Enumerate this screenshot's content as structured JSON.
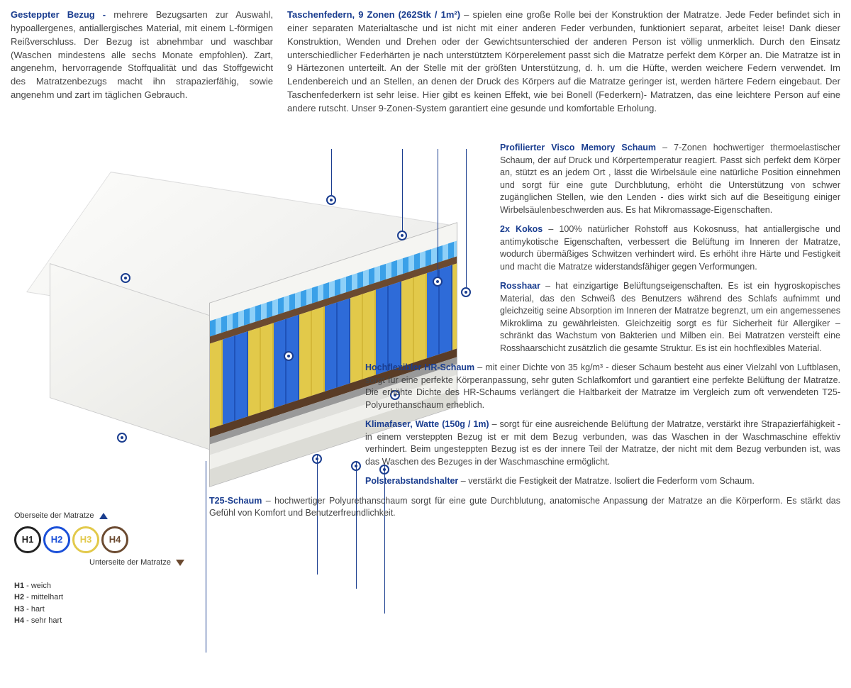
{
  "top": {
    "cover": {
      "title": "Gesteppter Bezug -",
      "text": "mehrere Bezugsarten zur Auswahl, hypoallergenes, antiallergisches Material, mit einem L-förmigen Reißverschluss. Der Bezug ist abnehmbar und waschbar (Waschen mindestens alle sechs Monate empfohlen). Zart, angenehm, hervorragende Stoffqualität und das Stoffgewicht des Matratzenbezugs macht ihn strapazierfähig, sowie angenehm und zart im täglichen Gebrauch."
    },
    "springs": {
      "title": "Taschenfedern, 9 Zonen (262Stk / 1m²)",
      "text": "– spielen eine große Rolle bei der Konstruktion der Matratze. Jede Feder befindet sich in einer separaten Materialtasche und ist nicht mit einer anderen Feder verbunden, funktioniert separat, arbeitet leise! Dank dieser Konstruktion, Wenden und Drehen oder der Gewichtsunterschied der anderen Person ist völlig unmerklich. Durch den Einsatz unterschiedlicher Federhärten je nach unterstütztem Körperelement passt sich die Matratze perfekt dem Körper an. Die Matratze ist in 9 Härtezonen unterteilt. An der Stelle mit der größten Unterstützung, d. h. um die Hüfte, werden weichere Federn verwendet. Im Lendenbereich und an Stellen, an denen der Druck des Körpers auf die Matratze geringer ist, werden härtere Federn eingebaut. Der Taschenfederkern ist sehr leise. Hier gibt es keinen Effekt, wie bei Bonell (Federkern)- Matratzen, das eine leichtere Person auf eine andere rutscht. Unser 9-Zonen-System garantiert eine gesunde und komfortable Erholung."
    }
  },
  "layers": [
    {
      "title": "Profilierter Visco Memory Schaum",
      "text": "– 7-Zonen hochwertiger thermoelastischer Schaum, der auf Druck und Körpertemperatur reagiert. Passt sich perfekt dem Körper an, stützt es an jedem Ort , lässt die Wirbelsäule eine natürliche Position einnehmen und sorgt für eine gute Durchblutung, erhöht die Unterstützung von schwer zugänglichen Stellen, wie den Lenden - dies wirkt sich auf die Beseitigung einiger Wirbelsäulenbeschwerden aus. Es hat Mikromassage-Eigenschaften.",
      "w": ""
    },
    {
      "title": "2x Kokos",
      "text": "– 100% natürlicher Rohstoff aus Kokosnuss, hat antiallergische und antimykotische Eigenschaften, verbessert die Belüftung im Inneren der Matratze, wodurch übermäßiges Schwitzen verhindert wird. Es erhöht ihre Härte und Festigkeit und macht die Matratze widerstandsfähiger gegen Verformungen.",
      "w": ""
    },
    {
      "title": "Rosshaar",
      "text": "– hat einzigartige Belüftungseigenschaften. Es ist ein hygroskopisches Material, das den Schweiß des Benutzers während des Schlafs aufnimmt und gleichzeitig seine Absorption im Inneren der Matratze begrenzt, um ein angemessenes Mikroklima zu gewährleisten. Gleichzeitig sorgt es für Sicherheit für Allergiker – schränkt das Wachstum von Bakterien und Milben ein. Bei Matratzen versteift eine Rosshaarschicht zusätzlich die gesamte Struktur. Es ist ein hochflexibles Material.",
      "w": ""
    },
    {
      "title": "Hochflexibler HR-Schaum",
      "text": "– mit einer Dichte von 35 kg/m³ - dieser Schaum besteht aus einer Vielzahl von Luftblasen, sorgt für eine perfekte Körperanpassung, sehr guten Schlafkomfort und garantiert eine perfekte Belüftung der Matratze. Die erhöhte Dichte des HR-Schaums verlängert die Haltbarkeit der Matratze im Vergleich zum oft verwendeten T25-Polyurethanschaum erheblich.",
      "w": "wider"
    },
    {
      "title": "Klimafaser, Watte (150g / 1m)",
      "text": "– sorgt für eine ausreichende Belüftung der Matratze, verstärkt ihre Strapazierfähigkeit - in einem versteppten Bezug ist er mit dem Bezug verbunden, was das Waschen in der Waschmaschine effektiv verhindert. Beim ungesteppten Bezug ist es der innere Teil der Matratze, der nicht mit dem Bezug verbunden ist, was das Waschen des Bezuges in der Waschmaschine ermöglicht.",
      "w": "wider"
    },
    {
      "title": "Polsterabstandshalter",
      "text": "– verstärkt die Festigkeit der Matratze. Isoliert die Federform vom Schaum.",
      "w": "wider"
    },
    {
      "title": "T25-Schaum",
      "text": "– hochwertiger Polyurethanschaum sorgt für eine gute Durchblutung, anatomische Anpassung der Matratze an die Körperform. Es stärkt das Gefühl von Komfort und Benutzerfreundlichkeit.",
      "w": "widest"
    }
  ],
  "legend": {
    "top_label": "Oberseite der Matratze",
    "bottom_label": "Unterseite der Matratze",
    "items": [
      {
        "code": "H1",
        "label": "weich",
        "color": "#222222"
      },
      {
        "code": "H2",
        "label": "mittelhart",
        "color": "#1a4fd8"
      },
      {
        "code": "H3",
        "label": "hart",
        "color": "#e2c94a"
      },
      {
        "code": "H4",
        "label": "sehr hart",
        "color": "#6b4a30"
      }
    ]
  },
  "colors": {
    "title": "#1a3d8f",
    "text": "#444444",
    "spring_blue": "#2e6bd8",
    "spring_yellow": "#e2c94a",
    "coco": "#5a3c26",
    "visco": "#3aa0e8"
  }
}
